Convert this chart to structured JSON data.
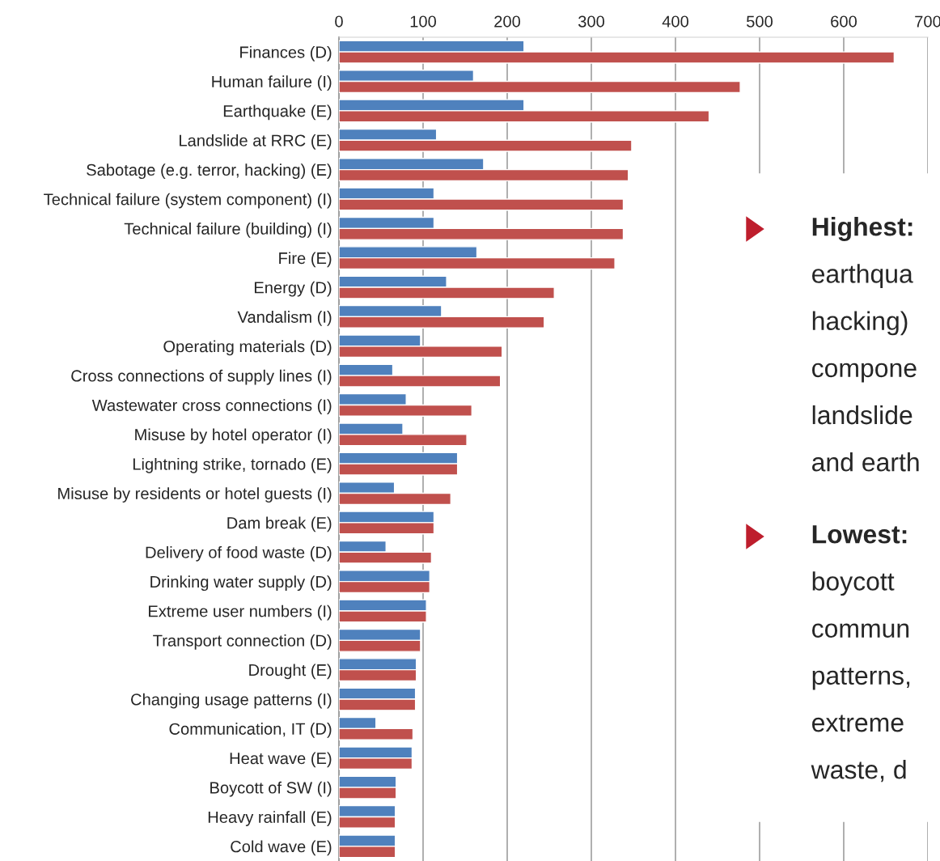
{
  "chart_data": {
    "type": "bar",
    "orientation": "horizontal",
    "categories": [
      "Finances (D)",
      "Human failure (I)",
      "Earthquake (E)",
      "Landslide at RRC (E)",
      "Sabotage (e.g. terror, hacking) (E)",
      "Technical failure (system component) (I)",
      "Technical failure (building) (I)",
      "Fire (E)",
      "Energy (D)",
      "Vandalism (I)",
      "Operating materials (D)",
      "Cross connections of supply lines (I)",
      "Wastewater cross connections (I)",
      "Misuse by hotel operator (I)",
      "Lightning strike, tornado (E)",
      "Misuse by residents or hotel guests (I)",
      "Dam break (E)",
      "Delivery of food waste (D)",
      "Drinking water supply (D)",
      "Extreme user numbers (I)",
      "Transport connection (D)",
      "Drought (E)",
      "Changing usage patterns (I)",
      "Communication, IT (D)",
      "Heat wave (E)",
      "Boycott of SW (I)",
      "Heavy rainfall (E)",
      "Cold wave (E)"
    ],
    "series": [
      {
        "color": "#4f81bd",
        "values": [
          220,
          160,
          220,
          116,
          172,
          113,
          113,
          164,
          128,
          122,
          97,
          64,
          80,
          76,
          141,
          66,
          113,
          56,
          108,
          104,
          97,
          92,
          91,
          44,
          87,
          68,
          67,
          67
        ]
      },
      {
        "color": "#c0504d",
        "values": [
          660,
          477,
          440,
          348,
          344,
          338,
          338,
          328,
          256,
          244,
          194,
          192,
          158,
          152,
          141,
          133,
          113,
          110,
          108,
          104,
          97,
          92,
          91,
          88,
          87,
          68,
          67,
          67
        ]
      }
    ],
    "xlim": [
      0,
      700
    ],
    "xticks": [
      0,
      100,
      200,
      300,
      400,
      500,
      600,
      700
    ],
    "grid": "x",
    "legend": false,
    "annotations": [
      "Highest:\nearthqua\nhacking)\ncompone\nlandslide\nand earth",
      "Lowest:\nboycott\ncommun\npatterns,\nextreme\nwaste, d"
    ]
  }
}
